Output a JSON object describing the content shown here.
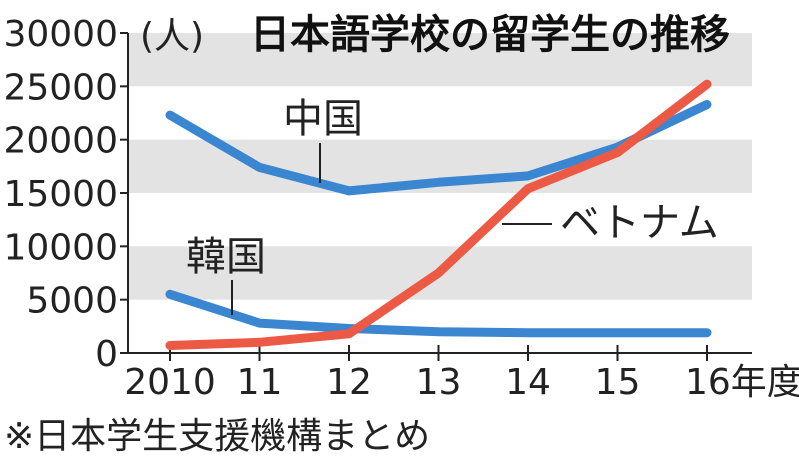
{
  "chart_data": {
    "type": "line",
    "title": "日本語学校の留学生の推移",
    "ylabel": "(人)",
    "xlabel": "年度",
    "x": [
      2010,
      2011,
      2012,
      2013,
      2014,
      2015,
      2016
    ],
    "xtick_labels": [
      "2010",
      "11",
      "12",
      "13",
      "14",
      "15",
      "16年度"
    ],
    "yticks": [
      0,
      5000,
      10000,
      15000,
      20000,
      25000,
      30000
    ],
    "ylim": [
      0,
      30000
    ],
    "background_bands": true,
    "series": [
      {
        "name": "中国",
        "color": "#3a86d0",
        "values": [
          22300,
          17400,
          15200,
          16000,
          16600,
          19300,
          23300
        ]
      },
      {
        "name": "ベトナム",
        "color": "#ec5a45",
        "values": [
          700,
          1000,
          1800,
          7500,
          15400,
          18800,
          25200
        ]
      },
      {
        "name": "韓国",
        "color": "#3a86d0",
        "values": [
          5500,
          2800,
          2300,
          2000,
          1900,
          1900,
          1900
        ]
      }
    ],
    "source": "※日本学生支援機構まとめ"
  }
}
